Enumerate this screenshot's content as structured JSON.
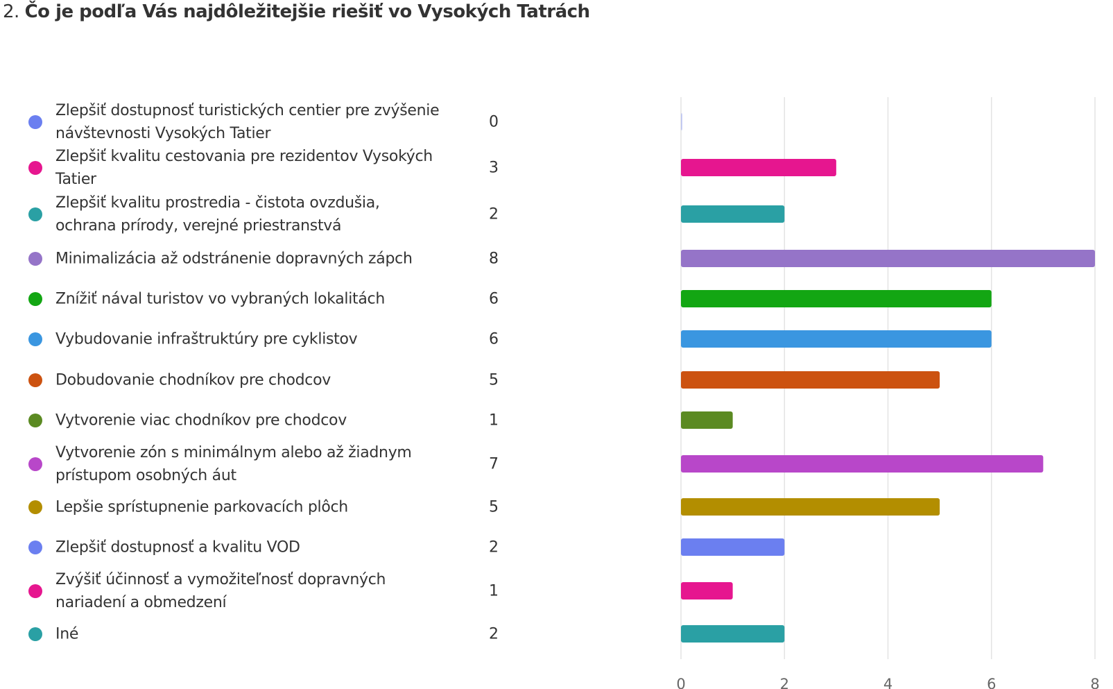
{
  "question": {
    "number": "2.",
    "title": "Čo je podľa Vás najdôležitejšie riešiť vo Vysokých Tatrách"
  },
  "chart_data": {
    "type": "bar",
    "orientation": "horizontal",
    "xlim": [
      0,
      8
    ],
    "xticks": [
      "0",
      "2",
      "4",
      "6",
      "8"
    ],
    "grid": true,
    "legend": "left",
    "categories": [
      "Zlepšiť dostupnosť turistických centier pre zvýšenie návštevnosti Vysokých Tatier",
      "Zlepšiť kvalitu cestovania pre rezidentov Vysokých Tatier",
      "Zlepšiť kvalitu prostredia - čistota ovzdušia, ochrana prírody, verejné priestranstvá",
      "Minimalizácia až odstránenie dopravných zápch",
      "Znížiť nával turistov vo vybraných lokalitách",
      "Vybudovanie infraštruktúry pre cyklistov",
      "Dobudovanie chodníkov pre chodcov",
      "Vytvorenie viac chodníkov pre chodcov",
      "Vytvorenie zón s minimálnym alebo až žiadnym prístupom osobných áut",
      "Lepšie sprístupnenie parkovacích plôch",
      "Zlepšiť dostupnosť a kvalitu VOD",
      "Zvýšiť účinnosť a vymožiteľnosť dopravných nariadení a obmedzení",
      "Iné"
    ],
    "values": [
      0,
      3,
      2,
      8,
      6,
      6,
      5,
      1,
      7,
      5,
      2,
      1,
      2
    ],
    "colors": [
      "#6b7ff0",
      "#e6168f",
      "#2aa0a4",
      "#9574c8",
      "#13a613",
      "#3a96e0",
      "#cc5210",
      "#5b8a22",
      "#b847c9",
      "#b38e00",
      "#6b7ff0",
      "#e6168f",
      "#2aa0a4"
    ]
  }
}
